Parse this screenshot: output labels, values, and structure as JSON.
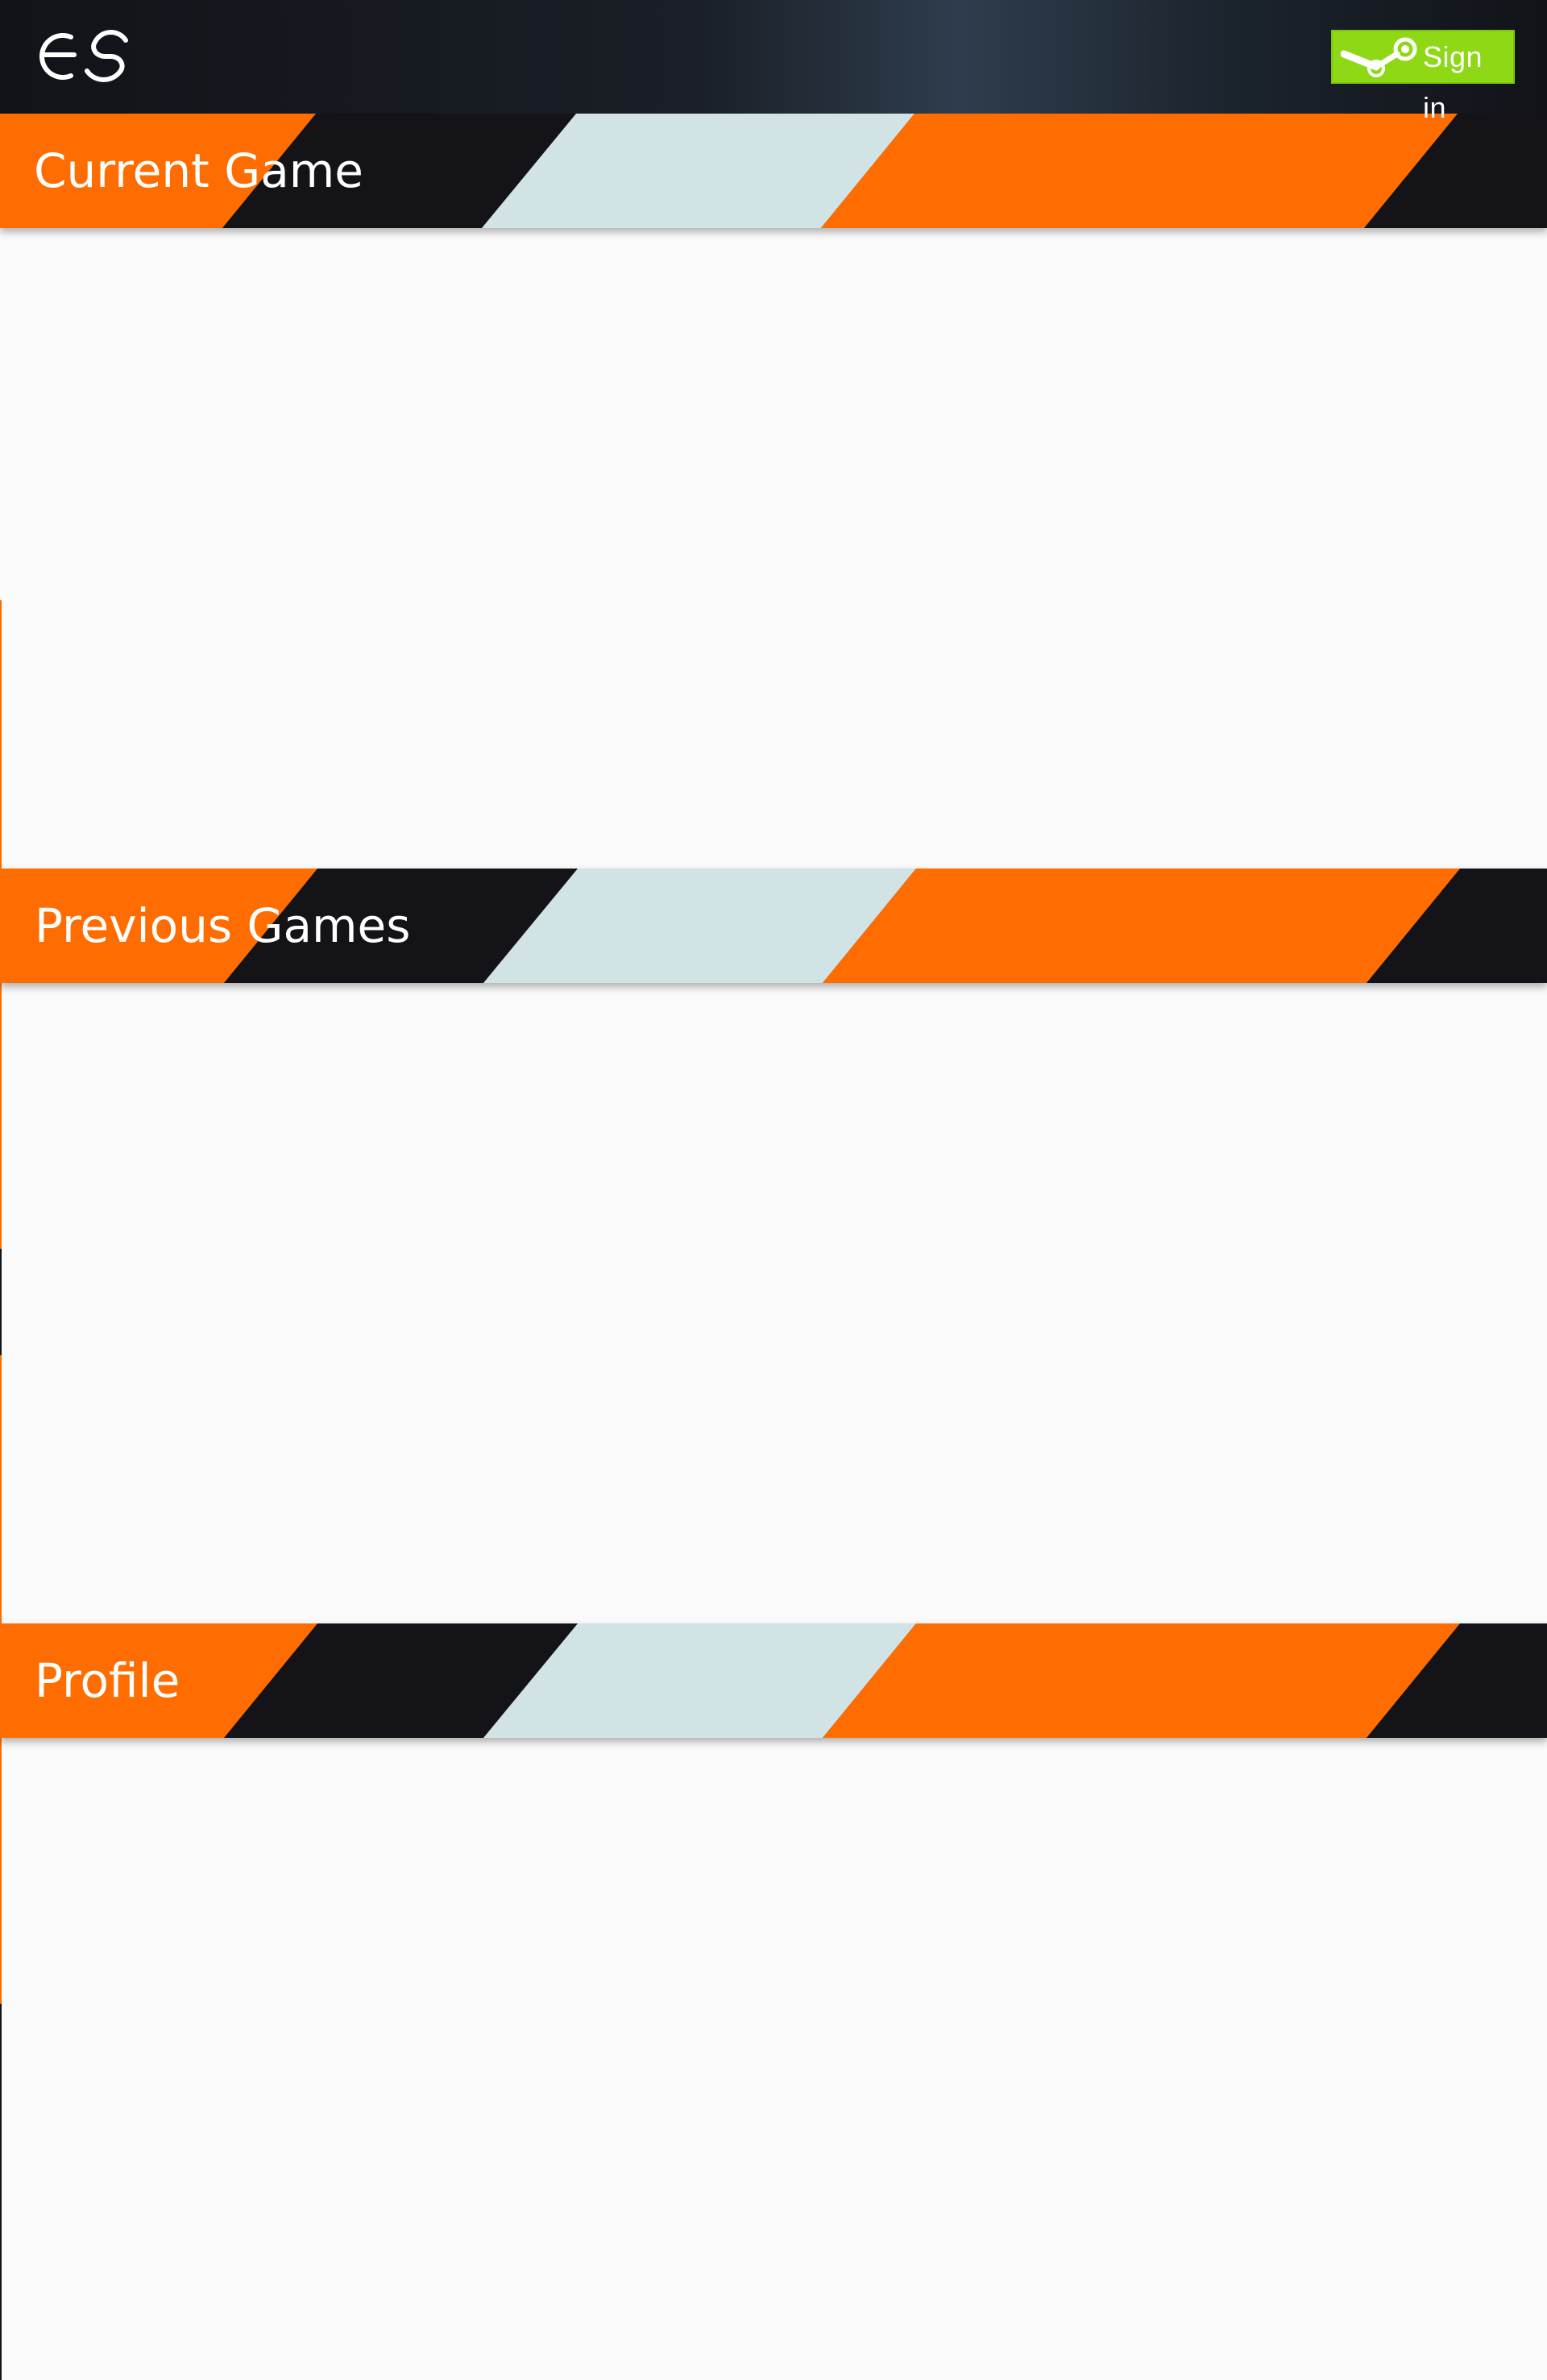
{
  "header": {
    "logo_icon": "cg-logo-icon",
    "signin": {
      "label": "Sign in",
      "icon": "steam-icon",
      "color": "#8fd816"
    }
  },
  "sections": [
    {
      "title": "Current Game"
    },
    {
      "title": "Previous Games"
    },
    {
      "title": "Profile"
    }
  ],
  "colors": {
    "orange": "#ff6d00",
    "dark": "#131318",
    "light": "#d2e3e6",
    "background": "#fafafa"
  }
}
